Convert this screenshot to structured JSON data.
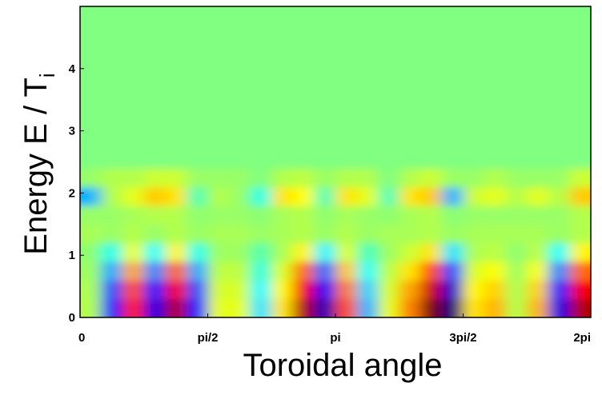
{
  "chart_data": {
    "type": "heatmap",
    "xlabel": "Toroidal angle",
    "ylabel": "Energy   E / T",
    "ylabel_sub": "i",
    "xlim": [
      0,
      6.2832
    ],
    "ylim": [
      0,
      5
    ],
    "xticks": [
      0,
      {
        "value": 1.5708,
        "label": "pi/2"
      },
      {
        "value": 3.1416,
        "label": "pi"
      },
      {
        "value": 4.7124,
        "label": "3pi/2"
      },
      {
        "value": 6.2832,
        "label": "2pi"
      }
    ],
    "yticks": [
      0,
      1,
      2,
      3,
      4
    ],
    "colormap": "jet",
    "zlim": [
      -1,
      1
    ],
    "ybins": [
      0,
      0.3,
      0.6,
      0.9,
      1.2,
      1.5,
      1.8,
      2.1,
      2.4,
      5
    ],
    "z": [
      [
        0.1,
        -0.7,
        0.7,
        -0.8,
        0.9,
        -0.7,
        0.2,
        0.2,
        -0.3,
        0.3,
        0.9,
        -0.9,
        0.6,
        -0.4,
        0.2,
        0.5,
        1.0,
        -1.0,
        0.3,
        0.4,
        0.1,
        0.4,
        -0.8,
        0.9
      ],
      [
        0.09,
        -0.6,
        0.6,
        -0.68,
        0.77,
        -0.6,
        0.17,
        0.17,
        -0.26,
        0.26,
        0.77,
        -0.77,
        0.51,
        -0.34,
        0.17,
        0.43,
        0.85,
        -0.85,
        0.26,
        0.34,
        0.09,
        0.34,
        -0.68,
        0.77
      ],
      [
        0.06,
        -0.42,
        0.42,
        -0.48,
        0.54,
        -0.42,
        0.12,
        0.12,
        -0.18,
        0.18,
        0.54,
        -0.54,
        0.36,
        -0.24,
        0.12,
        0.3,
        0.6,
        -0.6,
        0.18,
        0.24,
        0.06,
        0.24,
        -0.48,
        0.54
      ],
      [
        0.03,
        -0.21,
        0.21,
        -0.24,
        0.27,
        -0.21,
        0.06,
        0.06,
        -0.09,
        0.09,
        0.27,
        -0.27,
        0.18,
        -0.12,
        0.06,
        0.15,
        0.3,
        -0.3,
        0.09,
        0.12,
        0.03,
        0.12,
        -0.24,
        0.27
      ],
      [
        0.08,
        0.05,
        0.1,
        0.05,
        0.1,
        0.05,
        0.08,
        0.08,
        0.05,
        0.08,
        0.1,
        0.05,
        0.1,
        0.05,
        0.08,
        0.08,
        0.1,
        0.05,
        0.08,
        0.08,
        0.08,
        0.08,
        0.05,
        0.1
      ],
      [
        0.05,
        0.05,
        0.08,
        0.1,
        0.1,
        0.03,
        0.05,
        0.05,
        0.02,
        0.08,
        0.1,
        0.03,
        0.08,
        0.05,
        0.03,
        0.08,
        0.1,
        0.02,
        0.05,
        0.05,
        0.05,
        0.05,
        0.05,
        0.1
      ],
      [
        -0.4,
        0.1,
        0.2,
        0.35,
        0.3,
        -0.1,
        0.1,
        0.05,
        -0.2,
        0.3,
        0.25,
        -0.1,
        0.3,
        0.2,
        -0.1,
        0.3,
        0.35,
        -0.4,
        0.15,
        0.2,
        0.1,
        0.2,
        0.1,
        0.35
      ],
      [
        0.05,
        0.1,
        0.1,
        0.15,
        0.15,
        0.05,
        0.05,
        0.05,
        0,
        0.1,
        0.12,
        0.05,
        0.1,
        0.1,
        0,
        0.1,
        0.15,
        0.05,
        0.05,
        0.1,
        0.05,
        0.05,
        0.05,
        0.15
      ],
      [
        0,
        0,
        0,
        0,
        0,
        0,
        0,
        0,
        0,
        0,
        0,
        0,
        0,
        0,
        0,
        0,
        0,
        0,
        0,
        0,
        0,
        0,
        0,
        0
      ]
    ]
  }
}
